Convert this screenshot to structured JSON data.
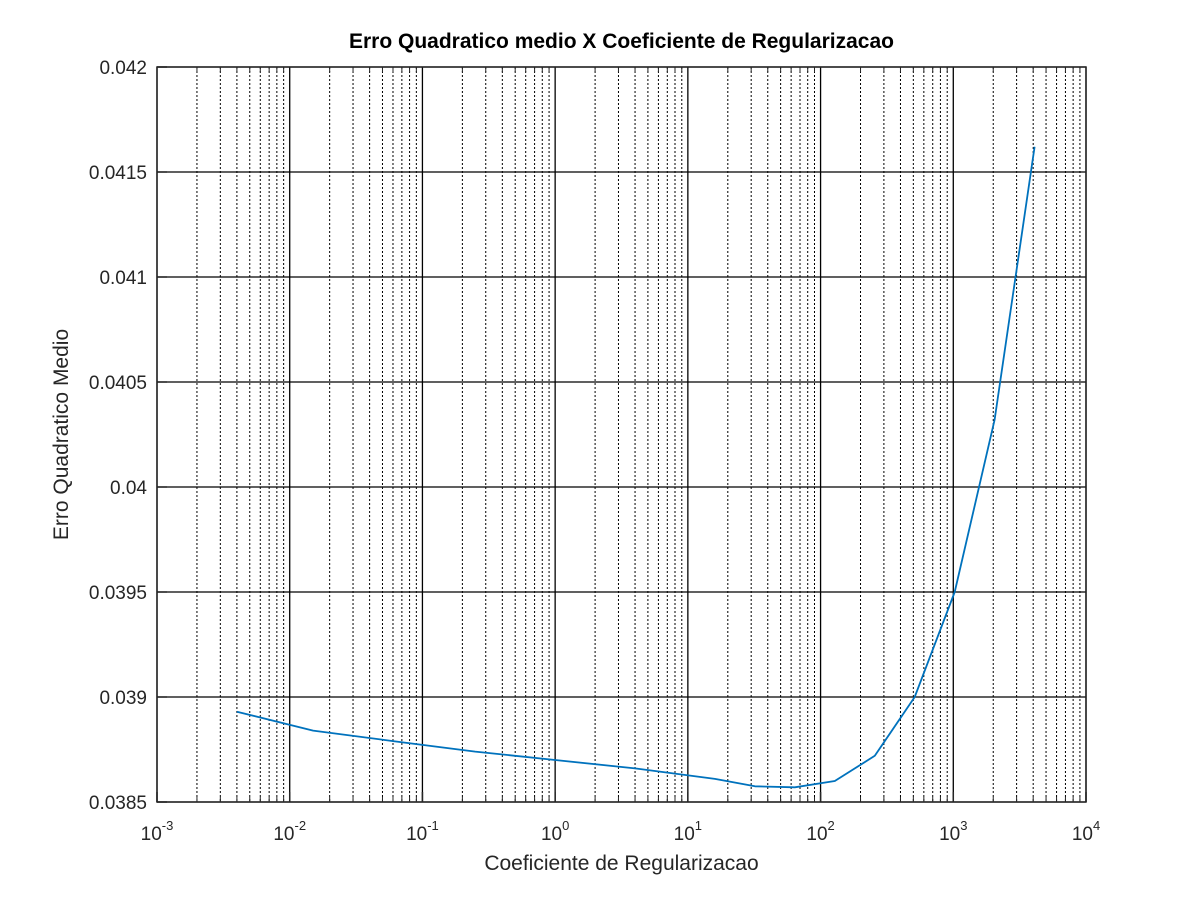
{
  "chart_data": {
    "type": "line",
    "title": "Erro Quadratico medio X Coeficiente de Regularizacao",
    "xlabel": "Coeficiente de Regularizacao",
    "ylabel": "Erro Quadratico Medio",
    "x_scale": "log",
    "xlim": [
      0.001,
      10000
    ],
    "ylim": [
      0.0385,
      0.042
    ],
    "x_ticks": [
      {
        "base": "10",
        "exp": "-3"
      },
      {
        "base": "10",
        "exp": "-2"
      },
      {
        "base": "10",
        "exp": "-1"
      },
      {
        "base": "10",
        "exp": "0"
      },
      {
        "base": "10",
        "exp": "1"
      },
      {
        "base": "10",
        "exp": "2"
      },
      {
        "base": "10",
        "exp": "3"
      },
      {
        "base": "10",
        "exp": "4"
      }
    ],
    "y_ticks": [
      "0.0385",
      "0.039",
      "0.0395",
      "0.04",
      "0.0405",
      "0.041",
      "0.0415",
      "0.042"
    ],
    "grid": true,
    "minor_grid": true,
    "series": [
      {
        "color": "#0072bd",
        "x": [
          0.004,
          0.015,
          0.06,
          0.25,
          1,
          4,
          16,
          32,
          64,
          128,
          256,
          512,
          1024,
          2048,
          4096
        ],
        "y": [
          0.03893,
          0.03884,
          0.03879,
          0.03874,
          0.0387,
          0.03866,
          0.03861,
          0.038575,
          0.03857,
          0.0386,
          0.03872,
          0.039,
          0.0395,
          0.04032,
          0.04162
        ]
      }
    ]
  }
}
